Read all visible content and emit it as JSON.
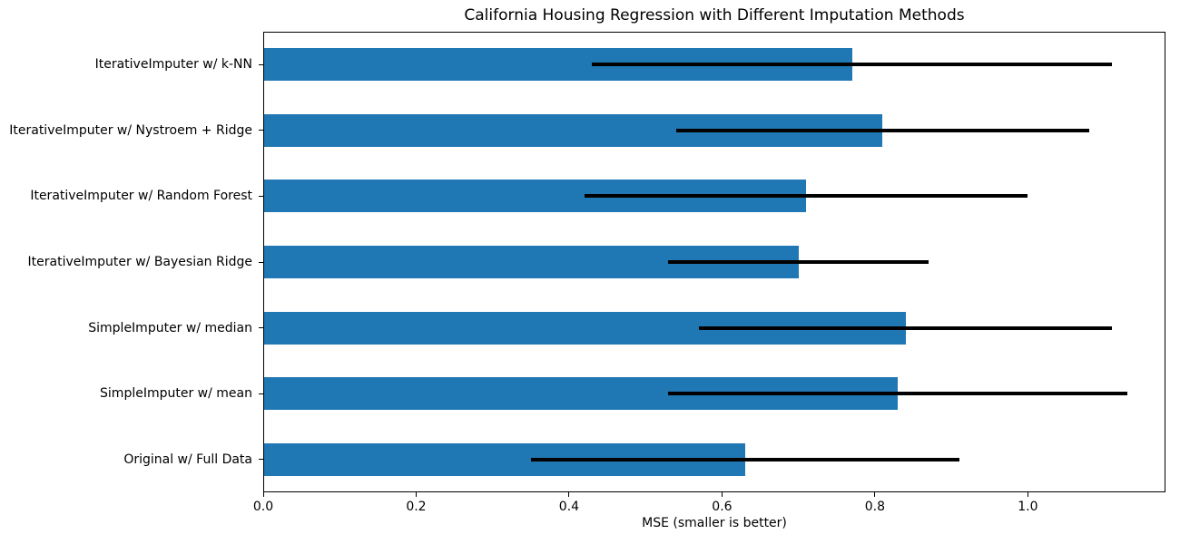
{
  "chart_data": {
    "type": "bar",
    "orientation": "horizontal",
    "title": "California Housing Regression with Different Imputation Methods",
    "xlabel": "MSE (smaller is better)",
    "ylabel": "",
    "categories": [
      "IterativeImputer w/ k-NN",
      "IterativeImputer w/ Nystroem + Ridge",
      "IterativeImputer w/ Random Forest",
      "IterativeImputer w/ Bayesian Ridge",
      "SimpleImputer w/ median",
      "SimpleImputer w/ mean",
      "Original w/ Full Data"
    ],
    "values": [
      0.77,
      0.81,
      0.71,
      0.7,
      0.84,
      0.83,
      0.63
    ],
    "errors": [
      0.34,
      0.27,
      0.29,
      0.17,
      0.27,
      0.3,
      0.28
    ],
    "xlim": [
      0,
      1.18
    ],
    "xtick_labels": [
      "0.0",
      "0.2",
      "0.4",
      "0.6",
      "0.8",
      "1.0"
    ],
    "grid": false,
    "legend_position": "none",
    "bar_color": "#1f77b4",
    "error_bar_color": "#000000",
    "axis_color": "#000000"
  }
}
